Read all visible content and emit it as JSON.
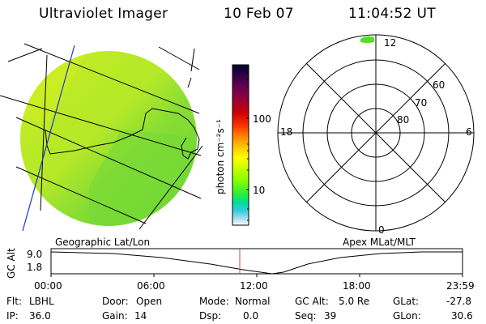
{
  "header": {
    "instrument": "Ultraviolet Imager",
    "date": "10 Feb 07",
    "time": "11:04:52 UT"
  },
  "colorbar": {
    "unit_label": "photon cm⁻²s⁻¹",
    "ticks": [
      "100",
      "10"
    ],
    "colors": [
      "#000033",
      "#330044",
      "#660055",
      "#990033",
      "#cc0000",
      "#ff3300",
      "#ff8800",
      "#ffcc00",
      "#ffff00",
      "#ccff00",
      "#88ff00",
      "#33ee33",
      "#00dd99",
      "#33ccdd",
      "#aaddee",
      "#ffffff"
    ]
  },
  "polar_plot": {
    "mlt_labels": {
      "top": "12",
      "left": "18",
      "right": "6",
      "bottom": "0"
    },
    "lat_labels": [
      "60",
      "70",
      "80"
    ]
  },
  "map_labels": {
    "left": "Geographic Lat/Lon",
    "right": "Apex MLat/MLT"
  },
  "altitude_strip": {
    "axis_label": "GC Alt",
    "y_ticks": [
      "9.0",
      "1.8"
    ],
    "x_ticks": [
      "00:00",
      "06:00",
      "12:00",
      "18:00",
      "23:59"
    ],
    "marker_time": "11:04:52",
    "marker_color": "#cc4444"
  },
  "status": {
    "filter_label": "Flt:",
    "filter_value": "LBHL",
    "ip_label": "IP:",
    "ip_value": "36.0",
    "door_label": "Door:",
    "door_value": "Open",
    "gain_label": "Gain:",
    "gain_value": "14",
    "mode_label": "Mode:",
    "mode_value": "Normal",
    "dsp_label": "Dsp:",
    "dsp_value": "0.0",
    "gcalt_label": "GC Alt:",
    "gcalt_value": "5.0 Re",
    "seq_label": "Seq:",
    "seq_value": "39",
    "glat_label": "GLat:",
    "glat_value": "-27.8",
    "glon_label": "GLon:",
    "glon_value": "30.6"
  }
}
